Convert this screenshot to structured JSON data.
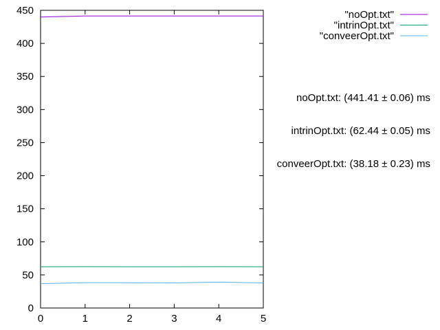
{
  "chart_data": {
    "type": "line",
    "title": "",
    "xlabel": "",
    "ylabel": "",
    "xlim": [
      0,
      5
    ],
    "ylim": [
      0,
      450
    ],
    "x_ticks": [
      "0",
      "1",
      "2",
      "3",
      "4",
      "5"
    ],
    "y_ticks": [
      "0",
      "50",
      "100",
      "150",
      "200",
      "250",
      "300",
      "350",
      "400",
      "450"
    ],
    "grid": false,
    "legend_position": "top-right",
    "series": [
      {
        "name": "\"noOpt.txt\"",
        "color": "#9400d3",
        "x": [
          0,
          1,
          2,
          3,
          4,
          5
        ],
        "y": [
          439.8,
          441.5,
          441.4,
          441.4,
          441.4,
          441.4
        ]
      },
      {
        "name": "\"intrinOpt.txt\"",
        "color": "#009e73",
        "x": [
          0,
          1,
          2,
          3,
          4,
          5
        ],
        "y": [
          62.4,
          62.5,
          62.4,
          62.4,
          62.5,
          62.4
        ]
      },
      {
        "name": "\"conveerOpt.txt\"",
        "color": "#56b4e9",
        "x": [
          0,
          1,
          2,
          3,
          4,
          5
        ],
        "y": [
          36.8,
          38.3,
          38.1,
          37.9,
          39.2,
          37.8
        ]
      }
    ],
    "annotations": [
      "noOpt.txt: (441.41 ± 0.06) ms",
      "intrinOpt.txt: (62.44 ± 0.05) ms",
      "conveerOpt.txt: (38.18 ± 0.23) ms"
    ]
  }
}
